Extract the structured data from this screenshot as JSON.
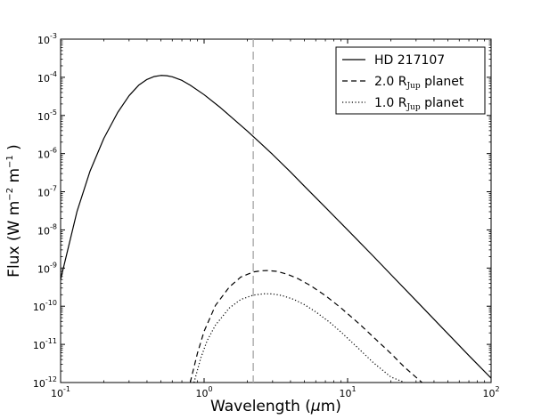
{
  "chart_data": {
    "type": "line",
    "xscale": "log",
    "yscale": "log",
    "xlim": [
      0.1,
      100
    ],
    "ylim": [
      1e-12,
      0.001
    ],
    "grid": false,
    "legend_position": "top-right",
    "xlabel": "Wavelength (μm)",
    "xlabel_parts": [
      "Wavelength (",
      "μ",
      "m)"
    ],
    "ylabel": "Flux (W m⁻² m⁻¹ )",
    "ylabel_parts": {
      "main": "Flux (W m",
      "sup1": "−2",
      "mid": " m",
      "sup2": "−1",
      "end": " )"
    },
    "x_ticks": [
      {
        "value": 0.1,
        "base": "10",
        "exp": "-1"
      },
      {
        "value": 1,
        "base": "10",
        "exp": "0"
      },
      {
        "value": 10,
        "base": "10",
        "exp": "1"
      },
      {
        "value": 100,
        "base": "10",
        "exp": "2"
      }
    ],
    "y_ticks": [
      {
        "value": 1e-12,
        "base": "10",
        "exp": "-12"
      },
      {
        "value": 1e-11,
        "base": "10",
        "exp": "-11"
      },
      {
        "value": 1e-10,
        "base": "10",
        "exp": "-10"
      },
      {
        "value": 1e-09,
        "base": "10",
        "exp": "-9"
      },
      {
        "value": 1e-08,
        "base": "10",
        "exp": "-8"
      },
      {
        "value": 1e-07,
        "base": "10",
        "exp": "-7"
      },
      {
        "value": 1e-06,
        "base": "10",
        "exp": "-6"
      },
      {
        "value": 1e-05,
        "base": "10",
        "exp": "-5"
      },
      {
        "value": 0.0001,
        "base": "10",
        "exp": "-4"
      },
      {
        "value": 0.001,
        "base": "10",
        "exp": "-3"
      }
    ],
    "vertical_line": {
      "x": 2.2,
      "color": "#aaaaaa"
    },
    "series": [
      {
        "name": "HD 217107",
        "legend_text": "HD 217107",
        "style": "solid",
        "color": "#000000",
        "x": [
          0.1,
          0.13,
          0.16,
          0.2,
          0.25,
          0.3,
          0.35,
          0.4,
          0.45,
          0.5,
          0.55,
          0.6,
          0.7,
          0.8,
          1,
          1.3,
          1.6,
          2,
          2.5,
          3,
          4,
          5,
          7,
          10,
          15,
          20,
          30,
          50,
          70,
          100
        ],
        "y": [
          5e-10,
          3e-08,
          3.4e-07,
          2.5e-06,
          1.2e-05,
          3.3e-05,
          6.2e-05,
          8.8e-05,
          0.000105,
          0.000112,
          0.00011,
          0.000103,
          8.3e-05,
          6.2e-05,
          3.5e-05,
          1.6e-05,
          8.1e-06,
          3.9e-06,
          1.8e-06,
          9.5e-07,
          3.3e-07,
          1.4e-07,
          3.9e-08,
          1e-08,
          2.1e-09,
          6.8e-10,
          1.4e-10,
          1.9e-11,
          5.1e-12,
          1.3e-12
        ]
      },
      {
        "name": "2.0 RJup planet",
        "legend_text": "2.0 R",
        "legend_sub": "Jup",
        "legend_rest": " planet",
        "style": "dashed",
        "color": "#000000",
        "x": [
          0.8,
          0.9,
          1.0,
          1.2,
          1.5,
          1.8,
          2.2,
          2.5,
          2.8,
          3.2,
          3.8,
          4.5,
          5.5,
          7,
          9,
          12,
          15,
          20,
          25,
          33
        ],
        "y": [
          1e-12,
          6e-12,
          2.2e-11,
          1.05e-10,
          3.2e-10,
          5.8e-10,
          7.9e-10,
          8.5e-10,
          8.6e-10,
          8.2e-10,
          6.9e-10,
          5.3e-10,
          3.5e-10,
          1.9e-10,
          9e-11,
          3.5e-11,
          1.6e-11,
          5.8e-12,
          2.5e-12,
          1e-12
        ]
      },
      {
        "name": "1.0 RJup planet",
        "legend_text": "1.0 R",
        "legend_sub": "Jup",
        "legend_rest": " planet",
        "style": "dotted",
        "color": "#000000",
        "x": [
          0.85,
          0.95,
          1.05,
          1.2,
          1.5,
          1.8,
          2.2,
          2.6,
          3.0,
          3.5,
          4.2,
          5,
          6,
          7.5,
          9,
          12,
          15,
          20,
          25
        ],
        "y": [
          1e-12,
          4.5e-12,
          1.25e-11,
          3.2e-11,
          9e-11,
          1.5e-10,
          1.95e-10,
          2.12e-10,
          2.1e-10,
          1.9e-10,
          1.52e-10,
          1.1e-10,
          7.1e-11,
          3.8e-11,
          2.1e-11,
          7.6e-12,
          3.4e-12,
          1.4e-12,
          1e-12
        ]
      }
    ]
  }
}
